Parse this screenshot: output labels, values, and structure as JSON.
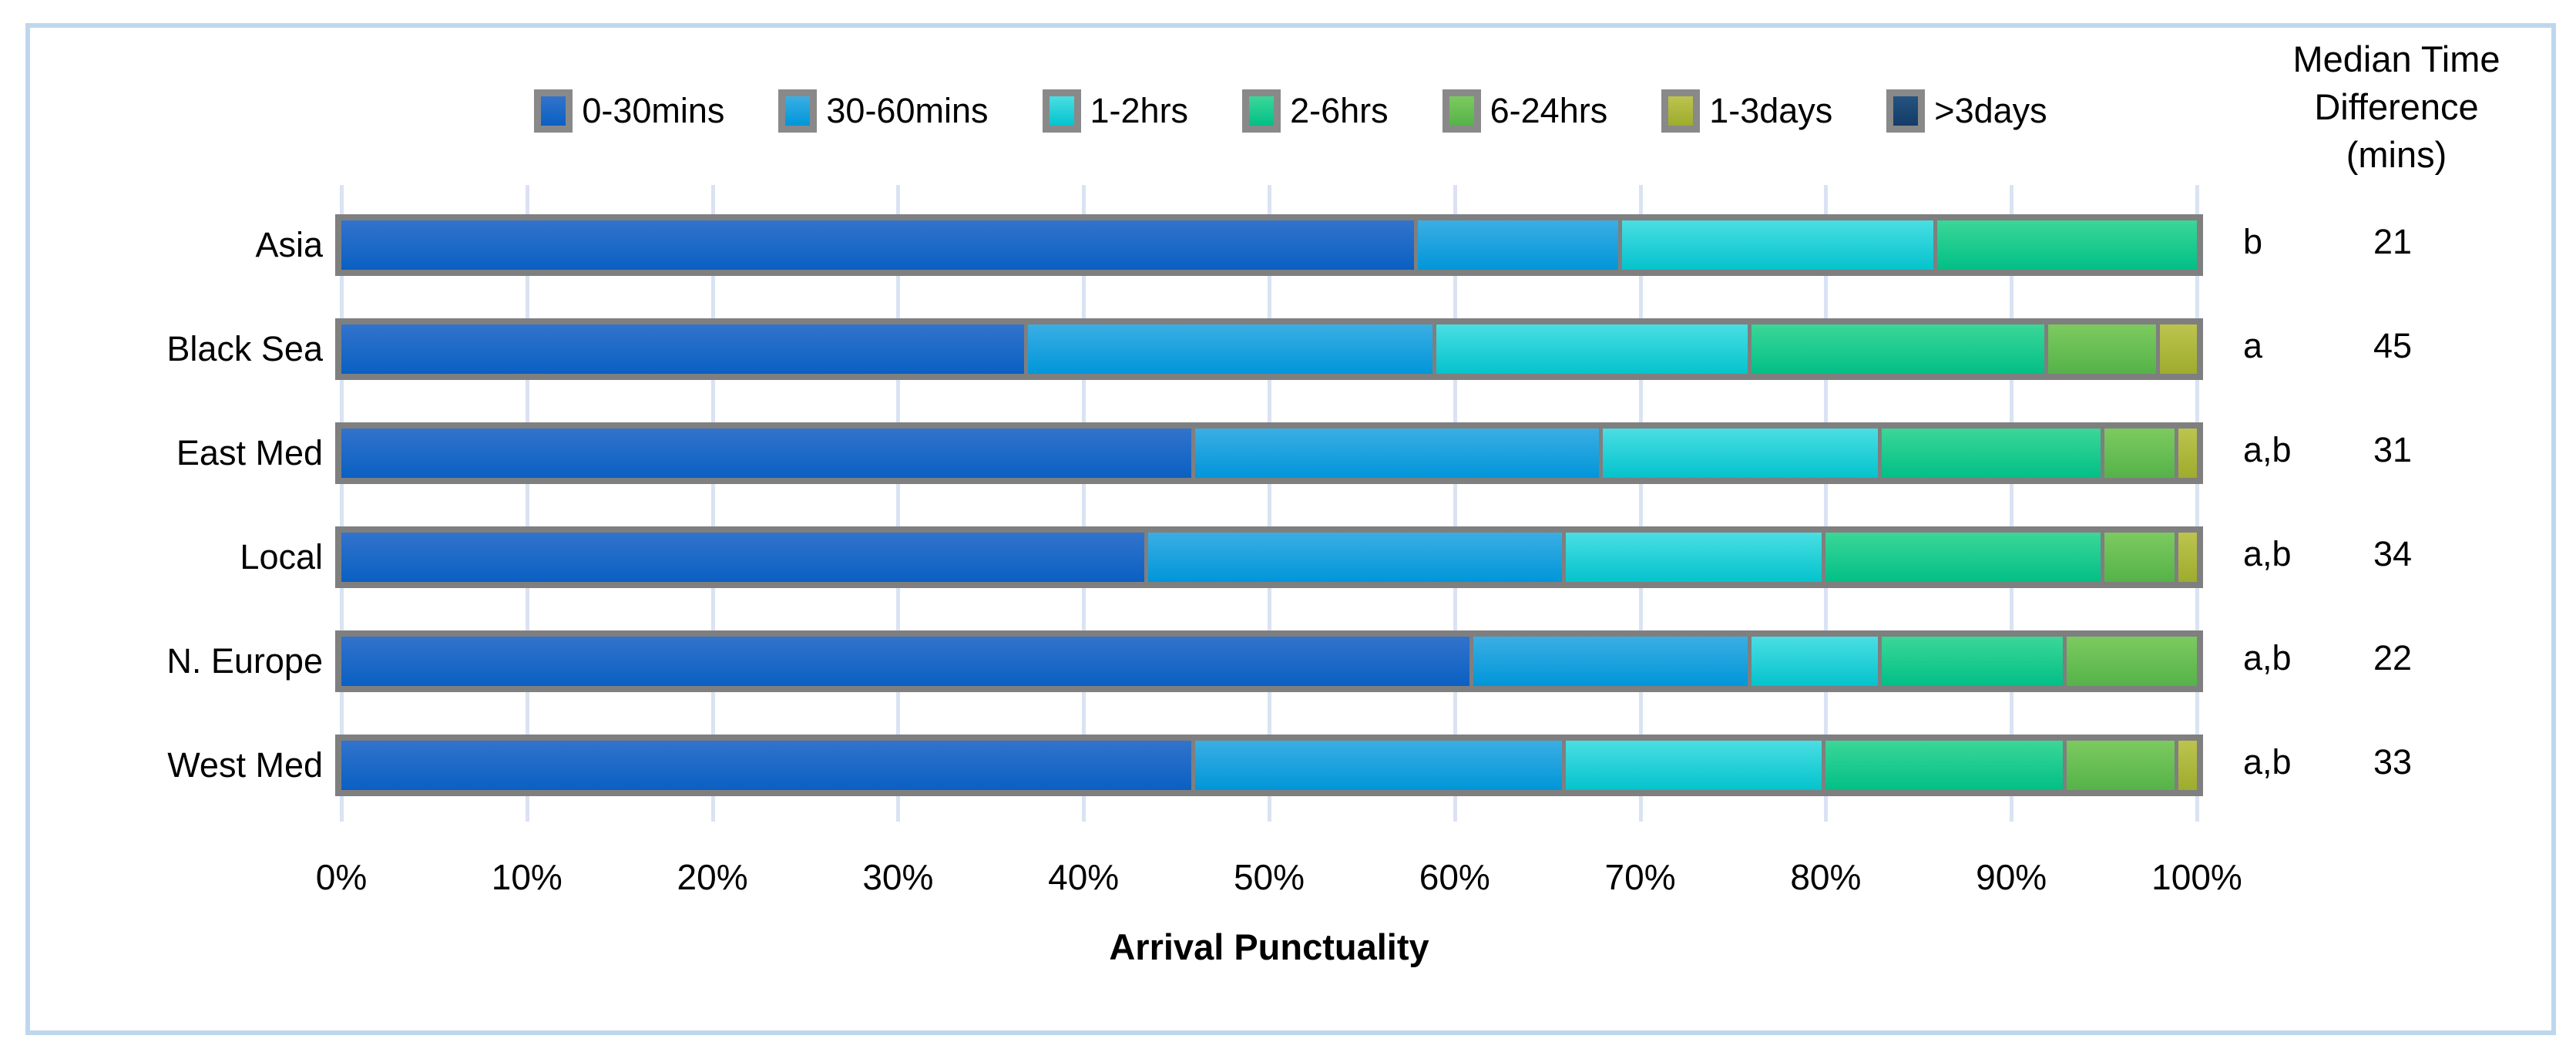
{
  "chart_data": {
    "type": "bar",
    "orientation": "horizontal_stacked",
    "xlabel": "Arrival Punctuality",
    "x_ticks": [
      "0%",
      "10%",
      "20%",
      "30%",
      "40%",
      "50%",
      "60%",
      "70%",
      "80%",
      "90%",
      "100%"
    ],
    "xlim": [
      0,
      100
    ],
    "grid": true,
    "legend_position": "top",
    "categories": [
      "Asia",
      "Black Sea",
      "East Med",
      "Local",
      "N. Europe",
      "West Med"
    ],
    "series": [
      {
        "name": "0-30mins",
        "color": "#1D69C7",
        "gradient": [
          "#3273CC",
          "#0A60C2"
        ],
        "values": [
          58,
          37,
          46,
          43.5,
          61,
          46
        ]
      },
      {
        "name": "30-60mins",
        "color": "#1FA2DE",
        "gradient": [
          "#3BAEE3",
          "#0096D9"
        ],
        "values": [
          11,
          22,
          22,
          22.5,
          15,
          20
        ]
      },
      {
        "name": "1-2hrs",
        "color": "#27D0D8",
        "gradient": [
          "#4ADEE3",
          "#04C3CD"
        ],
        "values": [
          17,
          17,
          15,
          14,
          7,
          14
        ]
      },
      {
        "name": "2-6hrs",
        "color": "#1FCB8F",
        "gradient": [
          "#3BD798",
          "#02BF86"
        ],
        "values": [
          14,
          16,
          12,
          15,
          10,
          13
        ]
      },
      {
        "name": "6-24hrs",
        "color": "#69BF54",
        "gradient": [
          "#7CCA5F",
          "#55B349"
        ],
        "values": [
          0,
          6,
          4,
          4,
          7,
          6
        ]
      },
      {
        "name": "1-3days",
        "color": "#ADB83D",
        "gradient": [
          "#BCC44E",
          "#9EAC2D"
        ],
        "values": [
          0,
          2,
          1,
          1,
          0,
          1
        ]
      },
      {
        "name": ">3days",
        "color": "#1A4570",
        "gradient": [
          "#255381",
          "#143C66"
        ],
        "values": [
          0,
          0,
          0,
          0,
          0,
          0
        ]
      }
    ],
    "annotations": {
      "median_header_lines": [
        "Median Time",
        "Difference",
        "(mins)"
      ],
      "letters": [
        "b",
        "a",
        "a,b",
        "a,b",
        "a,b",
        "a,b"
      ],
      "median_mins": [
        21,
        45,
        31,
        34,
        22,
        33
      ]
    }
  },
  "style": {
    "frame_border_color": "#BDD7EE",
    "gridline_color": "#DAE3F3",
    "bar_border_color": "#7F7F7F",
    "text_color": "#000000",
    "background": "#FFFFFF"
  }
}
